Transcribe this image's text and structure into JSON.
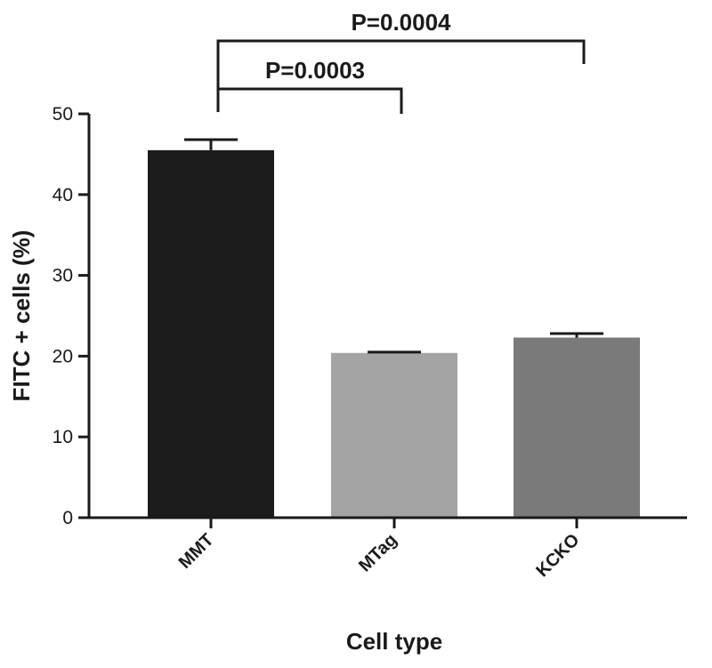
{
  "chart_data": {
    "type": "bar",
    "categories": [
      "MMT",
      "MTag",
      "KCKO"
    ],
    "values": [
      45.5,
      20.4,
      22.3
    ],
    "errors": [
      1.3,
      0.1,
      0.5
    ],
    "colors": [
      "#1c1c1c",
      "#a4a4a4",
      "#7a7a7a"
    ],
    "xlabel": "Cell type",
    "ylabel": "FITC + cells (%)",
    "ylim": [
      0,
      50
    ],
    "yticks": [
      0,
      10,
      20,
      30,
      40,
      50
    ],
    "grid": false,
    "comparisons": [
      {
        "from": 0,
        "to": 1,
        "label": "P=0.0003"
      },
      {
        "from": 0,
        "to": 2,
        "label": "P=0.0004"
      }
    ]
  }
}
